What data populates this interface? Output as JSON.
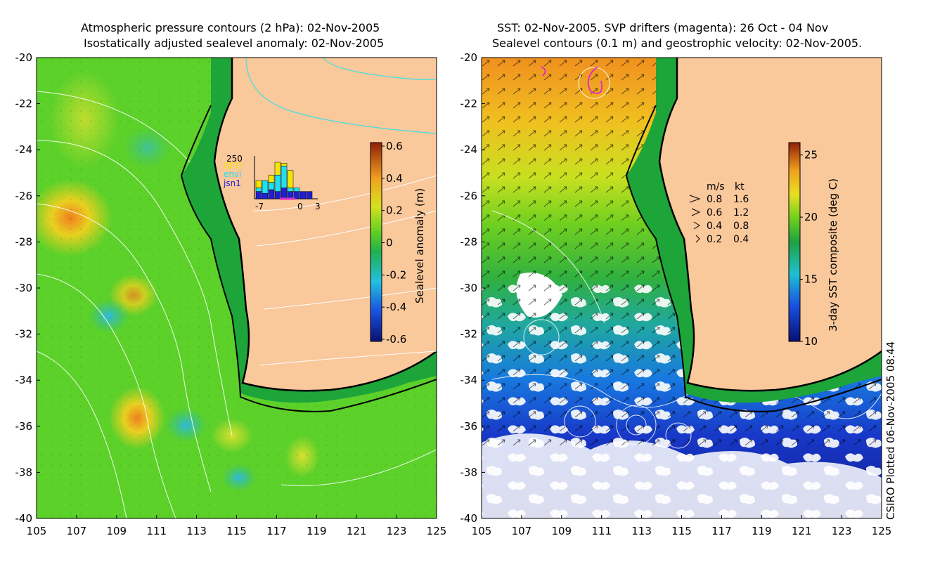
{
  "left_panel": {
    "title_line1": "Atmospheric pressure contours (2 hPa): 02-Nov-2005",
    "title_line2": "Isostatically adjusted sealevel anomaly: 02-Nov-2005",
    "colorbar": {
      "label": "Sealevel anomaly (m)",
      "ticks": [
        "0.6",
        "0.4",
        "0.2",
        "0",
        "-0.2",
        "-0.4",
        "-0.6"
      ],
      "range": [
        -0.6,
        0.6
      ]
    },
    "inset": {
      "y_max_label": "250",
      "legend": [
        {
          "name": "GFO",
          "color": "#f5e600"
        },
        {
          "name": "envi",
          "color": "#20e0f0"
        },
        {
          "name": "jsn1",
          "color": "#2020d0"
        }
      ],
      "x_ticks": [
        "-7",
        "0",
        "3"
      ],
      "bars": [
        {
          "jsn1": 40,
          "envi": 20,
          "gfo": 40
        },
        {
          "jsn1": 30,
          "envi": 70,
          "gfo": 0
        },
        {
          "jsn1": 50,
          "envi": 40,
          "gfo": 40
        },
        {
          "jsn1": 40,
          "envi": 90,
          "gfo": 70
        },
        {
          "jsn1": 60,
          "envi": 120,
          "gfo": 15
        },
        {
          "jsn1": 40,
          "envi": 20,
          "gfo": 95
        },
        {
          "jsn1": 40,
          "envi": 20,
          "gfo": 0
        },
        {
          "jsn1": 40,
          "envi": 0,
          "gfo": 0
        },
        {
          "jsn1": 40,
          "envi": 0,
          "gfo": 0
        }
      ]
    }
  },
  "right_panel": {
    "title_line1": "SST: 02-Nov-2005. SVP drifters (magenta): 26 Oct - 04 Nov",
    "title_line2": "Sealevel contours (0.1 m) and geostrophic velocity: 02-Nov-2005.",
    "colorbar": {
      "label": "3-day SST composite (deg C)",
      "ticks": [
        "25",
        "20",
        "15",
        "10"
      ],
      "range": [
        10,
        26
      ]
    },
    "velocity_legend": {
      "header_ms": "m/s",
      "header_kt": "kt",
      "rows": [
        {
          "ms": "0.8",
          "kt": "1.6"
        },
        {
          "ms": "0.6",
          "kt": "1.2"
        },
        {
          "ms": "0.4",
          "kt": "0.8"
        },
        {
          "ms": "0.2",
          "kt": "0.4"
        }
      ]
    }
  },
  "axes": {
    "lat_labels": [
      "-20",
      "-22",
      "-24",
      "-26",
      "-28",
      "-30",
      "-32",
      "-34",
      "-36",
      "-38",
      "-40"
    ],
    "lon_labels": [
      "105",
      "107",
      "109",
      "111",
      "113",
      "115",
      "117",
      "119",
      "121",
      "123",
      "125"
    ]
  },
  "credit": "CSIRO Plotted 06-Nov-2005 08:44",
  "colors": {
    "land": "#f9c89b",
    "shelf": "#1ea53a",
    "ocean_left": "#5cd12a",
    "sst_warm": "#f0a020",
    "sst_cold": "#1838c8"
  }
}
